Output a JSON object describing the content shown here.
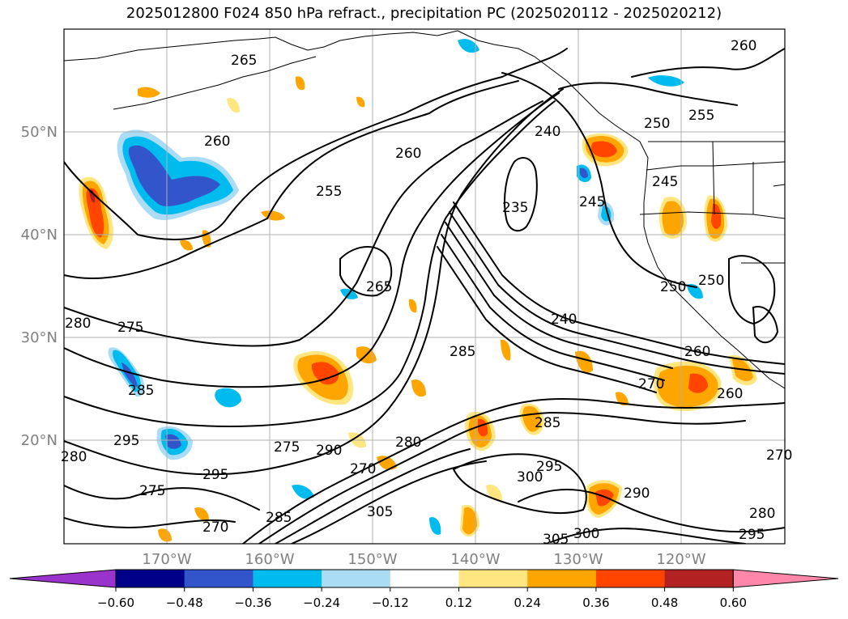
{
  "title": "2025012800 F024 850 hPa refract., precipitation PC (2025020112 - 2025020212)",
  "lat_labels": [
    "50°N",
    "40°N",
    "30°N",
    "20°N"
  ],
  "lon_labels": [
    "170°W",
    "160°W",
    "150°W",
    "140°W",
    "130°W",
    "120°W"
  ],
  "colorbar": {
    "ticks": [
      "−0.60",
      "−0.48",
      "−0.36",
      "−0.24",
      "−0.12",
      "0.12",
      "0.24",
      "0.36",
      "0.48",
      "0.60"
    ],
    "colors": [
      "#9933cc",
      "#000088",
      "#3355cc",
      "#00bbee",
      "#aaddf5",
      "#ffffff",
      "#ffe680",
      "#ffa500",
      "#ff4500",
      "#b22222",
      "#ff88aa"
    ]
  },
  "contour_labels": [
    "265",
    "260",
    "260",
    "255",
    "265",
    "240",
    "235",
    "245",
    "250",
    "255",
    "260",
    "245",
    "250",
    "250",
    "240",
    "280",
    "275",
    "285",
    "285",
    "270",
    "260",
    "260",
    "295",
    "295",
    "275",
    "290",
    "280",
    "285",
    "270",
    "300",
    "295",
    "305",
    "305",
    "300",
    "290",
    "280",
    "295",
    "270",
    "275",
    "285",
    "270",
    "280"
  ]
}
